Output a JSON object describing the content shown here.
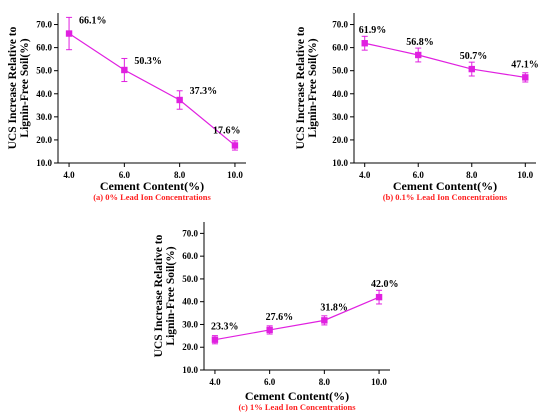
{
  "colors": {
    "series": "#e020e0",
    "caption": "#ff2020",
    "axis": "#000000"
  },
  "chart_data": [
    {
      "type": "line",
      "title": "",
      "caption": "(a) 0% Lead Ion Concentrations",
      "xlabel": "Cement Content(%)",
      "ylabel_lines": [
        "UCS Increase Relative to",
        "Lignin-Free Soil(%)"
      ],
      "x_ticks": [
        "4.0",
        "6.0",
        "8.0",
        "10.0"
      ],
      "y_ticks": [
        "10.0",
        "20.0",
        "30.0",
        "40.0",
        "50.0",
        "60.0",
        "70.0"
      ],
      "xlim": [
        3.6,
        10.4
      ],
      "ylim": [
        10,
        75
      ],
      "grid": false,
      "series": [
        {
          "x": [
            4.0,
            6.0,
            8.0,
            10.0
          ],
          "y": [
            66.1,
            50.3,
            37.3,
            17.6
          ],
          "err": [
            7.0,
            5.0,
            4.0,
            2.0
          ],
          "labels": [
            "66.1%",
            "50.3%",
            "37.3%",
            "17.6%"
          ]
        }
      ]
    },
    {
      "type": "line",
      "title": "",
      "caption": "(b) 0.1% Lead Ion Concentrations",
      "xlabel": "Cement Content(%)",
      "ylabel_lines": [
        "UCS Increase Relative to",
        "Lignin-Free Soil(%)"
      ],
      "x_ticks": [
        "4.0",
        "6.0",
        "8.0",
        "10.0"
      ],
      "y_ticks": [
        "10.0",
        "20.0",
        "30.0",
        "40.0",
        "50.0",
        "60.0",
        "70.0"
      ],
      "xlim": [
        3.6,
        10.4
      ],
      "ylim": [
        10,
        75
      ],
      "grid": false,
      "series": [
        {
          "x": [
            4.0,
            6.0,
            8.0,
            10.0
          ],
          "y": [
            61.9,
            56.8,
            50.7,
            47.1
          ],
          "err": [
            3.0,
            3.0,
            3.0,
            2.0
          ],
          "labels": [
            "61.9%",
            "56.8%",
            "50.7%",
            "47.1%"
          ]
        }
      ]
    },
    {
      "type": "line",
      "title": "",
      "caption": "(c) 1% Lead Ion Concentrations",
      "xlabel": "Cement Content(%)",
      "ylabel_lines": [
        "UCS Increase Relative to",
        "Lignin-Free Soil(%)"
      ],
      "x_ticks": [
        "4.0",
        "6.0",
        "8.0",
        "10.0"
      ],
      "y_ticks": [
        "10.0",
        "20.0",
        "30.0",
        "40.0",
        "50.0",
        "60.0",
        "70.0"
      ],
      "xlim": [
        3.6,
        10.4
      ],
      "ylim": [
        10,
        75
      ],
      "grid": false,
      "series": [
        {
          "x": [
            4.0,
            6.0,
            8.0,
            10.0
          ],
          "y": [
            23.3,
            27.6,
            31.8,
            42.0
          ],
          "err": [
            1.8,
            1.8,
            2.0,
            3.0
          ],
          "labels": [
            "23.3%",
            "27.6%",
            "31.8%",
            "42.0%"
          ]
        }
      ]
    }
  ]
}
